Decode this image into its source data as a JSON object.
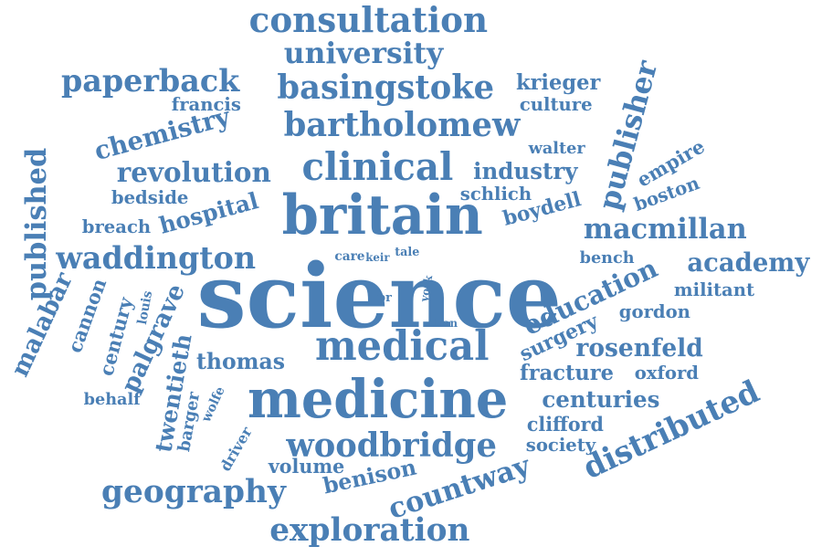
{
  "color": "#4a7fb5",
  "background": "#ffffff",
  "words": [
    {
      "text": "science"
    },
    {
      "text": "medicine"
    },
    {
      "text": "britain"
    },
    {
      "text": "medical"
    },
    {
      "text": "clinical"
    },
    {
      "text": "bartholomew"
    },
    {
      "text": "consultation"
    },
    {
      "text": "basingstoke"
    },
    {
      "text": "woodbridge"
    },
    {
      "text": "waddington"
    },
    {
      "text": "exploration"
    },
    {
      "text": "geography"
    },
    {
      "text": "paperback"
    },
    {
      "text": "university"
    },
    {
      "text": "published"
    },
    {
      "text": "publisher"
    },
    {
      "text": "distributed"
    },
    {
      "text": "education"
    },
    {
      "text": "macmillan"
    },
    {
      "text": "countway"
    },
    {
      "text": "revolution"
    },
    {
      "text": "chemistry"
    },
    {
      "text": "academy"
    },
    {
      "text": "rosenfeld"
    },
    {
      "text": "hospital"
    },
    {
      "text": "centuries"
    },
    {
      "text": "palgrave"
    },
    {
      "text": "malabar"
    },
    {
      "text": "twentieth"
    },
    {
      "text": "industry"
    },
    {
      "text": "fracture"
    },
    {
      "text": "benison"
    },
    {
      "text": "thomas"
    },
    {
      "text": "krieger"
    },
    {
      "text": "boydell"
    },
    {
      "text": "surgery"
    },
    {
      "text": "volume"
    },
    {
      "text": "century"
    },
    {
      "text": "cannon"
    },
    {
      "text": "clifford"
    },
    {
      "text": "society"
    },
    {
      "text": "militant"
    },
    {
      "text": "gordon"
    },
    {
      "text": "oxford"
    },
    {
      "text": "culture"
    },
    {
      "text": "francis"
    },
    {
      "text": "bedside"
    },
    {
      "text": "breach"
    },
    {
      "text": "schlich"
    },
    {
      "text": "walter"
    },
    {
      "text": "empire"
    },
    {
      "text": "boston"
    },
    {
      "text": "bench"
    },
    {
      "text": "behalf"
    },
    {
      "text": "barger"
    },
    {
      "text": "wolfe"
    },
    {
      "text": "driver"
    },
    {
      "text": "louis"
    },
    {
      "text": "care"
    },
    {
      "text": "keir"
    },
    {
      "text": "tale"
    },
    {
      "text": "york"
    },
    {
      "text": "tran"
    },
    {
      "text": "pr"
    }
  ]
}
